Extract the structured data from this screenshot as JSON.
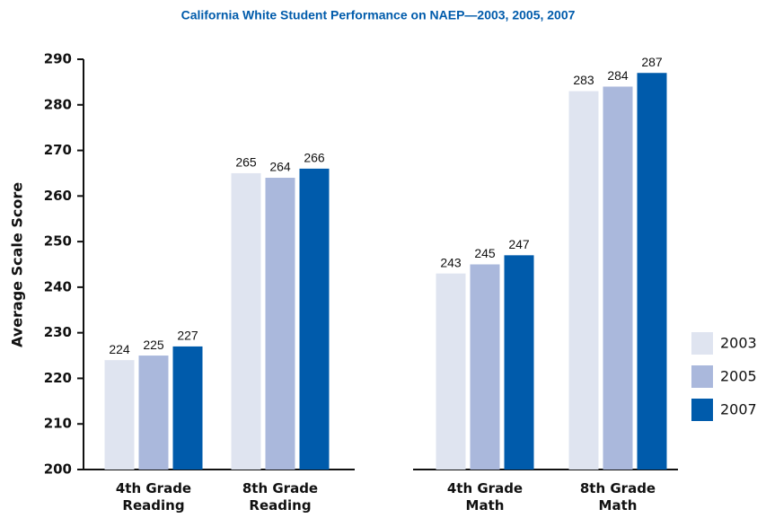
{
  "chart_data": {
    "type": "bar",
    "title": "California White Student Performance on NAEP—2003, 2005, 2007",
    "y_label": "Average Scale Score",
    "categories": [
      "4th Grade Reading",
      "8th Grade Reading",
      "4th Grade Math",
      "8th Grade Math"
    ],
    "series": [
      {
        "name": "2003",
        "color": "#dfe4f0",
        "values": [
          224,
          265,
          243,
          283
        ]
      },
      {
        "name": "2005",
        "color": "#aab8dc",
        "values": [
          225,
          264,
          245,
          284
        ]
      },
      {
        "name": "2007",
        "color": "#005bab",
        "values": [
          227,
          266,
          247,
          287
        ]
      }
    ],
    "ylim": [
      200,
      290
    ],
    "yticks": [
      200,
      210,
      220,
      230,
      240,
      250,
      260,
      270,
      280,
      290
    ],
    "legend": "right"
  }
}
